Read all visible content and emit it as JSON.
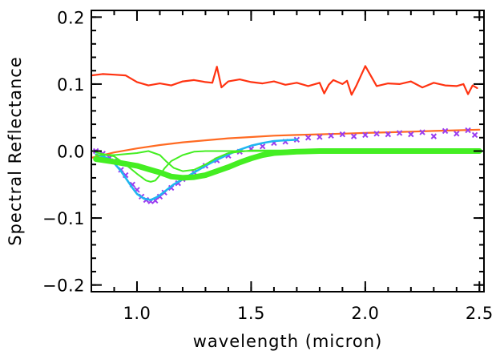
{
  "chart_data": {
    "type": "line",
    "title": "",
    "xlabel": "wavelength (micron)",
    "ylabel": "Spectral Reflectance",
    "xlim": [
      0.8,
      2.52
    ],
    "ylim": [
      -0.21,
      0.21
    ],
    "xticks": [
      1.0,
      1.5,
      2.0,
      2.5
    ],
    "xtick_labels": [
      "1.0",
      "1.5",
      "2.0",
      "2.5"
    ],
    "yticks": [
      -0.2,
      -0.1,
      0.0,
      0.1,
      0.2
    ],
    "ytick_labels": [
      "−0.2",
      "−0.1",
      "0.0",
      "0.1",
      "0.2"
    ],
    "grid": false,
    "legend": "none",
    "series": [
      {
        "style": "line",
        "color": "#ff3311",
        "width": 2.2,
        "x": [
          0.8,
          0.85,
          0.9,
          0.95,
          1.0,
          1.05,
          1.1,
          1.15,
          1.2,
          1.25,
          1.3,
          1.33,
          1.35,
          1.37,
          1.4,
          1.45,
          1.5,
          1.55,
          1.6,
          1.65,
          1.7,
          1.75,
          1.8,
          1.82,
          1.84,
          1.86,
          1.9,
          1.92,
          1.94,
          1.96,
          2.0,
          2.05,
          2.1,
          2.15,
          2.2,
          2.25,
          2.3,
          2.35,
          2.4,
          2.43,
          2.45,
          2.47,
          2.49
        ],
        "y": [
          0.113,
          0.115,
          0.114,
          0.113,
          0.103,
          0.098,
          0.101,
          0.098,
          0.104,
          0.106,
          0.103,
          0.102,
          0.126,
          0.095,
          0.104,
          0.107,
          0.103,
          0.101,
          0.104,
          0.099,
          0.102,
          0.097,
          0.102,
          0.086,
          0.099,
          0.106,
          0.1,
          0.105,
          0.084,
          0.097,
          0.127,
          0.097,
          0.101,
          0.1,
          0.104,
          0.095,
          0.102,
          0.098,
          0.097,
          0.1,
          0.085,
          0.098,
          0.094
        ]
      },
      {
        "style": "line",
        "color": "#ff6a22",
        "width": 2.2,
        "x": [
          0.8,
          0.9,
          1.0,
          1.1,
          1.2,
          1.3,
          1.4,
          1.5,
          1.6,
          1.7,
          1.8,
          1.9,
          2.0,
          2.1,
          2.2,
          2.3,
          2.4,
          2.5
        ],
        "y": [
          -0.01,
          -0.002,
          0.004,
          0.009,
          0.013,
          0.016,
          0.019,
          0.021,
          0.023,
          0.024,
          0.025,
          0.026,
          0.027,
          0.028,
          0.029,
          0.03,
          0.031,
          0.032
        ]
      },
      {
        "style": "points",
        "color": "#9b3cf0",
        "x": [
          0.82,
          0.85,
          0.88,
          0.9,
          0.93,
          0.95,
          0.98,
          1.0,
          1.02,
          1.04,
          1.06,
          1.08,
          1.1,
          1.12,
          1.15,
          1.18,
          1.2,
          1.25,
          1.3,
          1.35,
          1.4,
          1.45,
          1.5,
          1.55,
          1.6,
          1.65,
          1.7,
          1.75,
          1.8,
          1.85,
          1.9,
          1.95,
          2.0,
          2.05,
          2.1,
          2.15,
          2.2,
          2.25,
          2.3,
          2.35,
          2.4,
          2.45,
          2.48
        ],
        "y": [
          0.0,
          -0.004,
          -0.01,
          -0.015,
          -0.028,
          -0.036,
          -0.05,
          -0.058,
          -0.068,
          -0.073,
          -0.075,
          -0.074,
          -0.068,
          -0.062,
          -0.055,
          -0.048,
          -0.042,
          -0.032,
          -0.022,
          -0.014,
          -0.007,
          -0.001,
          0.003,
          0.007,
          0.012,
          0.014,
          0.017,
          0.02,
          0.021,
          0.023,
          0.025,
          0.022,
          0.024,
          0.026,
          0.025,
          0.027,
          0.025,
          0.028,
          0.022,
          0.03,
          0.026,
          0.031,
          0.024
        ]
      },
      {
        "style": "line",
        "color": "#1fb6f0",
        "width": 2.6,
        "x": [
          0.82,
          0.85,
          0.88,
          0.9,
          0.93,
          0.95,
          0.98,
          1.0,
          1.03,
          1.06,
          1.08,
          1.1,
          1.13,
          1.16,
          1.2,
          1.25,
          1.3,
          1.35,
          1.4,
          1.45,
          1.5,
          1.55,
          1.6,
          1.65,
          1.7
        ],
        "y": [
          -0.005,
          -0.008,
          -0.012,
          -0.018,
          -0.03,
          -0.04,
          -0.055,
          -0.064,
          -0.071,
          -0.073,
          -0.07,
          -0.066,
          -0.058,
          -0.05,
          -0.042,
          -0.032,
          -0.022,
          -0.013,
          -0.005,
          0.002,
          0.008,
          0.012,
          0.015,
          0.016,
          0.017
        ]
      },
      {
        "style": "line",
        "color": "#44ee22",
        "width": 2,
        "x": [
          0.82,
          0.9,
          0.95,
          1.0,
          1.04,
          1.06,
          1.08,
          1.1,
          1.12,
          1.15,
          1.2,
          1.25,
          1.3,
          1.4,
          1.5,
          1.6,
          1.7,
          2.0,
          2.5
        ],
        "y": [
          -0.002,
          -0.008,
          -0.02,
          -0.034,
          -0.044,
          -0.046,
          -0.044,
          -0.036,
          -0.026,
          -0.015,
          -0.006,
          -0.001,
          0.0,
          0.0,
          0.0,
          0.0,
          0.0,
          0.0,
          0.0
        ]
      },
      {
        "style": "line",
        "color": "#44ee22",
        "width": 2,
        "x": [
          0.82,
          0.9,
          1.0,
          1.05,
          1.1,
          1.13,
          1.16,
          1.2,
          1.25,
          1.3,
          1.35,
          1.4,
          1.5,
          1.6,
          1.7,
          2.0,
          2.5
        ],
        "y": [
          -0.006,
          -0.006,
          -0.003,
          0.0,
          -0.006,
          -0.016,
          -0.025,
          -0.03,
          -0.028,
          -0.02,
          -0.01,
          -0.003,
          0.001,
          0.001,
          0.001,
          0.001,
          0.001
        ]
      },
      {
        "style": "line",
        "color": "#44ee22",
        "width": 7,
        "x": [
          0.82,
          0.9,
          1.0,
          1.05,
          1.1,
          1.15,
          1.2,
          1.25,
          1.3,
          1.35,
          1.4,
          1.45,
          1.5,
          1.55,
          1.6,
          1.7,
          1.8,
          2.0,
          2.2,
          2.4,
          2.5
        ],
        "y": [
          -0.012,
          -0.016,
          -0.022,
          -0.027,
          -0.032,
          -0.038,
          -0.04,
          -0.039,
          -0.036,
          -0.03,
          -0.024,
          -0.017,
          -0.011,
          -0.006,
          -0.003,
          -0.001,
          0.0,
          0.0,
          0.0,
          0.0,
          0.0
        ]
      }
    ]
  }
}
